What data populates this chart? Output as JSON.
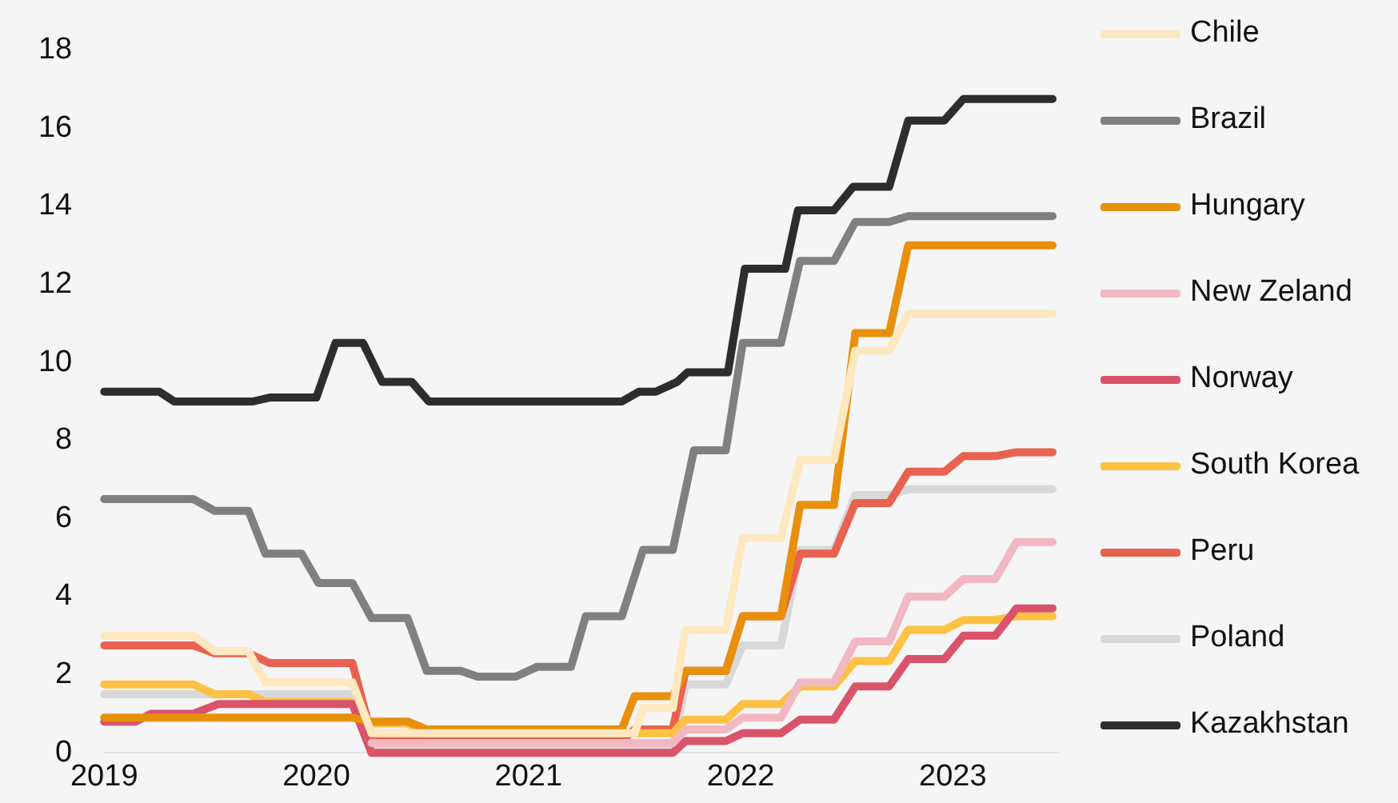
{
  "chart_data": {
    "type": "line",
    "xlim": [
      2019,
      2023.5
    ],
    "xticks": [
      2019,
      2020,
      2021,
      2022,
      2023
    ],
    "ylim": [
      0,
      18
    ],
    "yticks": [
      0,
      2,
      4,
      6,
      8,
      10,
      12,
      14,
      16,
      18
    ],
    "grid": false,
    "legend": "right",
    "marker": "none",
    "line_style": "solid",
    "series": [
      {
        "name": "Chile",
        "color": "#fde8c0",
        "x": [
          2019,
          2019.42,
          2019.52,
          2019.68,
          2019.76,
          2020.17,
          2020.26,
          2021.5,
          2021.54,
          2021.68,
          2021.74,
          2021.93,
          2022.01,
          2022.19,
          2022.28,
          2022.44,
          2022.54,
          2022.7,
          2022.79,
          2023.47
        ],
        "values": [
          3.0,
          3.0,
          2.6,
          2.6,
          1.8,
          1.8,
          0.5,
          0.5,
          1.15,
          1.15,
          3.15,
          3.15,
          5.5,
          5.5,
          7.5,
          7.5,
          10.3,
          10.3,
          11.25,
          11.25
        ]
      },
      {
        "name": "Brazil",
        "color": "#808080",
        "x": [
          2019,
          2019.42,
          2019.52,
          2019.68,
          2019.76,
          2019.93,
          2020.01,
          2020.17,
          2020.26,
          2020.43,
          2020.52,
          2020.68,
          2020.76,
          2020.94,
          2021.04,
          2021.2,
          2021.27,
          2021.44,
          2021.54,
          2021.68,
          2021.78,
          2021.93,
          2022.01,
          2022.19,
          2022.28,
          2022.44,
          2022.54,
          2022.7,
          2022.79,
          2023.47
        ],
        "values": [
          6.5,
          6.5,
          6.2,
          6.2,
          5.1,
          5.1,
          4.35,
          4.35,
          3.45,
          3.45,
          2.1,
          2.1,
          1.95,
          1.95,
          2.2,
          2.2,
          3.5,
          3.5,
          5.2,
          5.2,
          7.75,
          7.75,
          10.5,
          10.5,
          12.6,
          12.6,
          13.6,
          13.6,
          13.75,
          13.75
        ]
      },
      {
        "name": "Hungary",
        "color": "#e8900c",
        "x": [
          2019,
          2020.17,
          2020.26,
          2020.43,
          2020.52,
          2021.44,
          2021.5,
          2021.68,
          2021.74,
          2021.93,
          2022.01,
          2022.19,
          2022.28,
          2022.44,
          2022.54,
          2022.7,
          2022.79,
          2023.47
        ],
        "values": [
          0.9,
          0.9,
          0.8,
          0.8,
          0.6,
          0.6,
          1.45,
          1.45,
          2.1,
          2.1,
          3.5,
          3.5,
          6.35,
          6.35,
          10.75,
          10.75,
          13.0,
          13.0
        ]
      },
      {
        "name": "New Zeland",
        "color": "#f2b8c2",
        "x": [
          2020.26,
          2021.68,
          2021.74,
          2021.93,
          2022.01,
          2022.19,
          2022.28,
          2022.44,
          2022.54,
          2022.7,
          2022.79,
          2022.96,
          2023.05,
          2023.2,
          2023.3,
          2023.47
        ],
        "values": [
          0.25,
          0.25,
          0.6,
          0.6,
          0.9,
          0.9,
          1.8,
          1.8,
          2.85,
          2.85,
          4.0,
          4.0,
          4.45,
          4.45,
          5.4,
          5.4
        ]
      },
      {
        "name": "Norway",
        "color": "#d9536a",
        "x": [
          2019,
          2019.15,
          2019.22,
          2019.42,
          2019.54,
          2020.17,
          2020.26,
          2021.68,
          2021.74,
          2021.93,
          2022.01,
          2022.19,
          2022.28,
          2022.44,
          2022.54,
          2022.7,
          2022.79,
          2022.96,
          2023.05,
          2023.2,
          2023.3,
          2023.47
        ],
        "values": [
          0.8,
          0.8,
          1.0,
          1.0,
          1.25,
          1.25,
          0.0,
          0.0,
          0.3,
          0.3,
          0.5,
          0.5,
          0.85,
          0.85,
          1.7,
          1.7,
          2.4,
          2.4,
          3.0,
          3.0,
          3.7,
          3.7
        ]
      },
      {
        "name": "South Korea",
        "color": "#fdc143",
        "x": [
          2019,
          2019.42,
          2019.52,
          2019.68,
          2019.76,
          2020.17,
          2020.26,
          2020.43,
          2020.52,
          2021.68,
          2021.74,
          2021.93,
          2022.01,
          2022.19,
          2022.28,
          2022.44,
          2022.54,
          2022.7,
          2022.79,
          2022.96,
          2023.05,
          2023.2,
          2023.3,
          2023.47
        ],
        "values": [
          1.75,
          1.75,
          1.5,
          1.5,
          1.3,
          1.3,
          0.75,
          0.75,
          0.5,
          0.5,
          0.85,
          0.85,
          1.25,
          1.25,
          1.7,
          1.7,
          2.35,
          2.35,
          3.15,
          3.15,
          3.4,
          3.4,
          3.5,
          3.5
        ]
      },
      {
        "name": "Peru",
        "color": "#e8624f",
        "x": [
          2019,
          2019.42,
          2019.52,
          2019.68,
          2019.78,
          2020.17,
          2020.26,
          2020.43,
          2020.52,
          2021.44,
          2021.5,
          2021.68,
          2021.74,
          2021.93,
          2022.01,
          2022.19,
          2022.28,
          2022.44,
          2022.54,
          2022.7,
          2022.79,
          2022.96,
          2023.05,
          2023.2,
          2023.3,
          2023.47
        ],
        "values": [
          2.75,
          2.75,
          2.55,
          2.55,
          2.3,
          2.3,
          0.45,
          0.45,
          0.3,
          0.3,
          0.6,
          0.6,
          2.1,
          2.1,
          3.5,
          3.5,
          5.1,
          5.1,
          6.4,
          6.4,
          7.2,
          7.2,
          7.6,
          7.6,
          7.7,
          7.7
        ]
      },
      {
        "name": "Poland",
        "color": "#d8d8d8",
        "x": [
          2019,
          2020.17,
          2020.26,
          2021.68,
          2021.74,
          2021.93,
          2022.01,
          2022.19,
          2022.28,
          2022.44,
          2022.54,
          2022.7,
          2022.79,
          2023.47
        ],
        "values": [
          1.5,
          1.5,
          0.1,
          0.1,
          1.75,
          1.75,
          2.75,
          2.75,
          5.2,
          5.2,
          6.6,
          6.6,
          6.75,
          6.75
        ]
      },
      {
        "name": "Kazakhstan",
        "color": "#2d2d2d",
        "x": [
          2019,
          2019.26,
          2019.33,
          2019.7,
          2019.78,
          2020.0,
          2020.09,
          2020.22,
          2020.31,
          2020.45,
          2020.53,
          2021.44,
          2021.52,
          2021.6,
          2021.7,
          2021.75,
          2021.94,
          2022.02,
          2022.21,
          2022.27,
          2022.44,
          2022.53,
          2022.7,
          2022.79,
          2022.96,
          2023.05,
          2023.47
        ],
        "values": [
          9.25,
          9.25,
          9.0,
          9.0,
          9.1,
          9.1,
          10.5,
          10.5,
          9.5,
          9.5,
          9.0,
          9.0,
          9.25,
          9.25,
          9.5,
          9.75,
          9.75,
          12.4,
          12.4,
          13.9,
          13.9,
          14.5,
          14.5,
          16.2,
          16.2,
          16.75,
          16.75
        ]
      }
    ]
  }
}
